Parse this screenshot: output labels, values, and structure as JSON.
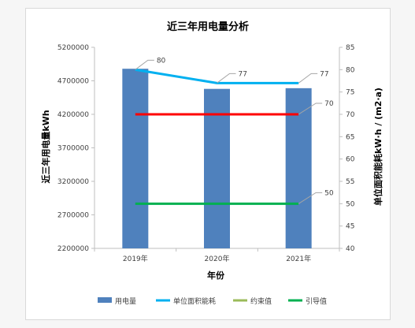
{
  "chart_data": {
    "type": "bar",
    "title": "近三年用电量分析",
    "xlabel": "年份",
    "ylabel": "近三年用电量kWh",
    "y2label": "单位面积能耗kW·h / (m2·a)",
    "categories": [
      "2019年",
      "2020年",
      "2021年"
    ],
    "ylim": [
      2200000,
      5200000
    ],
    "yticks": [
      "2200000",
      "2700000",
      "3200000",
      "3700000",
      "4200000",
      "4700000",
      "5200000"
    ],
    "y2lim": [
      40,
      85
    ],
    "y2ticks": [
      "40",
      "45",
      "50",
      "55",
      "60",
      "65",
      "70",
      "75",
      "80",
      "85"
    ],
    "series": [
      {
        "name": "用电量",
        "type": "bar",
        "axis": "left",
        "color": "#4f81bd",
        "values": [
          4880000,
          4580000,
          4590000
        ]
      },
      {
        "name": "单位面积能耗",
        "type": "line",
        "axis": "right",
        "color": "#00b0f0",
        "values": [
          80,
          77,
          77
        ],
        "labels": [
          "80",
          "77",
          "77"
        ]
      },
      {
        "name": "约束值",
        "type": "line",
        "axis": "right",
        "color": "#ff0000",
        "legend_color": "#9bbb59",
        "values": [
          70,
          70,
          70
        ],
        "label": "70"
      },
      {
        "name": "引导值",
        "type": "line",
        "axis": "right",
        "color": "#00b050",
        "values": [
          50,
          50,
          50
        ],
        "label": "50"
      }
    ],
    "legend_position": "bottom",
    "grid": false
  }
}
